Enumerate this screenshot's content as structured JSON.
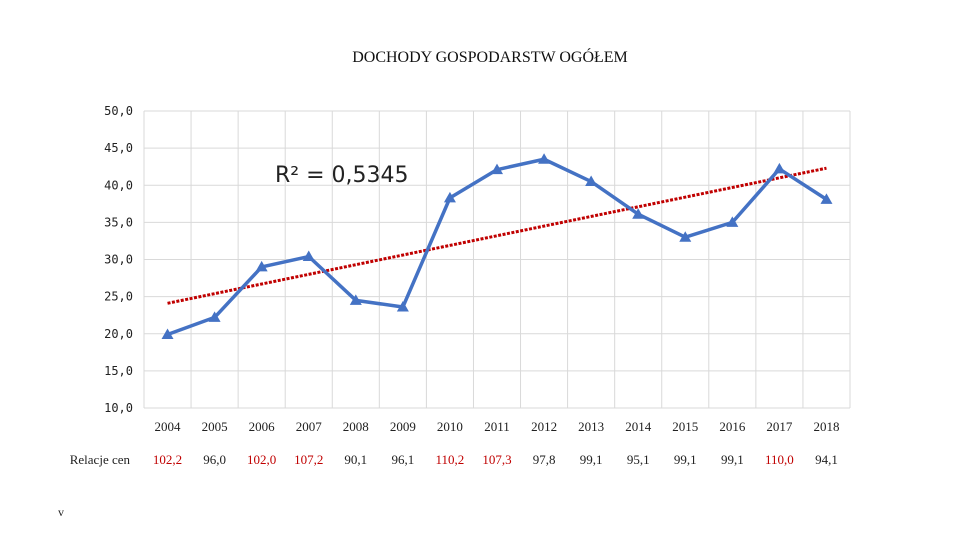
{
  "chart_data": {
    "type": "line",
    "title": "DOCHODY GOSPODARSTW OGÓŁEM",
    "x": [
      "2004",
      "2005",
      "2006",
      "2007",
      "2008",
      "2009",
      "2010",
      "2011",
      "2012",
      "2013",
      "2014",
      "2015",
      "2016",
      "2017",
      "2018"
    ],
    "series": [
      {
        "values": [
          19.9,
          22.2,
          29.0,
          30.4,
          24.5,
          23.6,
          38.3,
          42.1,
          43.5,
          40.5,
          36.1,
          33.0,
          35.0,
          42.2,
          38.1
        ]
      }
    ],
    "trendline": {
      "type": "linear",
      "start": 24.1,
      "end": 42.3,
      "label": "R² = 0,5345"
    },
    "ylim": [
      10,
      50
    ],
    "yticks": [
      "10,0",
      "15,0",
      "20,0",
      "25,0",
      "30,0",
      "35,0",
      "40,0",
      "45,0",
      "50,0"
    ],
    "grid": true,
    "colors": {
      "line": "#4472c4",
      "trend": "#c00000"
    }
  },
  "relacje": {
    "label": "Relacje cen",
    "values": [
      "102,2",
      "96,0",
      "102,0",
      "107,2",
      "90,1",
      "96,1",
      "110,2",
      "107,3",
      "97,8",
      "99,1",
      "95,1",
      "99,1",
      "99,1",
      "110,0",
      "94,1"
    ],
    "colors": [
      "#c00000",
      "#222222",
      "#c00000",
      "#c00000",
      "#222222",
      "#222222",
      "#c00000",
      "#c00000",
      "#222222",
      "#222222",
      "#222222",
      "#222222",
      "#222222",
      "#c00000",
      "#222222"
    ]
  },
  "footnote": "v"
}
